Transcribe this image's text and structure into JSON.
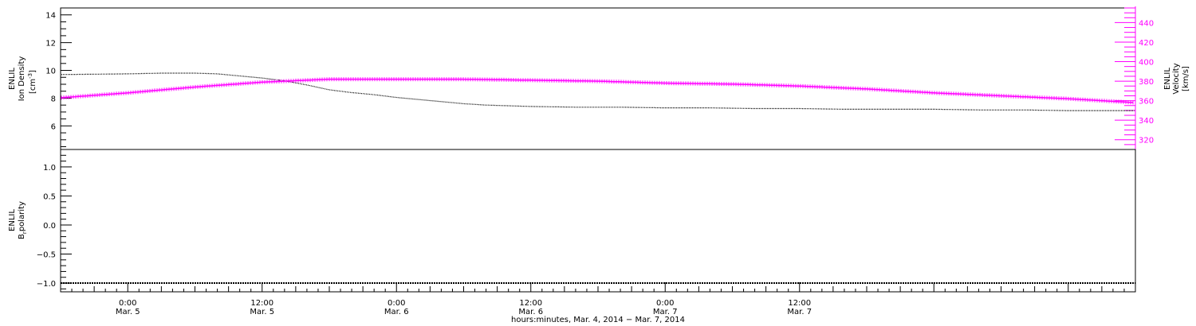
{
  "chart_data": [
    {
      "type": "line",
      "panel": "top",
      "ylabel_left": [
        "ENLIL",
        "Ion Density",
        "[cm",
        "-3",
        "]"
      ],
      "ylabel_right": [
        "ENLIL",
        "Velocity",
        "[km/s]"
      ],
      "ylim_left": [
        4.3,
        14.5
      ],
      "ylim_right": [
        310,
        455
      ],
      "left_ticks": [
        6,
        8,
        10,
        12,
        14
      ],
      "right_ticks": [
        320,
        340,
        360,
        380,
        400,
        420,
        440
      ],
      "left_color": "#000000",
      "right_color": "#ff00ff",
      "series": [
        {
          "axis": "left",
          "color": "#000000",
          "x": [
            -6,
            0,
            3,
            6,
            8,
            10,
            12,
            14,
            16,
            18,
            20,
            22,
            24,
            26,
            28,
            30,
            32,
            34,
            36,
            40,
            44,
            48,
            52,
            56,
            60,
            64,
            68,
            72,
            76,
            80,
            84,
            88,
            90
          ],
          "y": [
            9.7,
            9.75,
            9.8,
            9.8,
            9.75,
            9.6,
            9.45,
            9.25,
            8.95,
            8.6,
            8.4,
            8.25,
            8.05,
            7.9,
            7.75,
            7.6,
            7.5,
            7.45,
            7.4,
            7.35,
            7.35,
            7.3,
            7.3,
            7.25,
            7.25,
            7.2,
            7.2,
            7.2,
            7.15,
            7.15,
            7.1,
            7.1,
            7.1
          ]
        },
        {
          "axis": "right",
          "color": "#ff00ff",
          "x": [
            -6,
            0,
            6,
            12,
            18,
            24,
            30,
            36,
            42,
            48,
            54,
            60,
            66,
            72,
            78,
            84,
            90
          ],
          "y": [
            363,
            368,
            374,
            379,
            382,
            382,
            382,
            381,
            380,
            378,
            377,
            375,
            372,
            368,
            365,
            362,
            358
          ]
        }
      ]
    },
    {
      "type": "line",
      "panel": "bottom",
      "ylabel_left": [
        "ENLIL",
        "B",
        "r",
        "polarity"
      ],
      "ylim": [
        -1.15,
        1.3
      ],
      "ticks": [
        "1.0",
        "0.5",
        "0.0",
        "−0.5",
        "−1.0"
      ],
      "tick_values": [
        1.0,
        0.5,
        0.0,
        -0.5,
        -1.0
      ],
      "series": [
        {
          "color": "#000000",
          "x": [
            -6,
            90
          ],
          "y": [
            -1.0,
            -1.0
          ]
        }
      ]
    }
  ],
  "x_axis": {
    "xlim_hours": [
      -6,
      90
    ],
    "major_ticks": [
      {
        "hour": 0,
        "time": "0:00",
        "date": "Mar. 5"
      },
      {
        "hour": 12,
        "time": "12:00",
        "date": "Mar. 5"
      },
      {
        "hour": 24,
        "time": "0:00",
        "date": "Mar. 6"
      },
      {
        "hour": 36,
        "time": "12:00",
        "date": "Mar. 6"
      },
      {
        "hour": 48,
        "time": "0:00",
        "date": "Mar. 7"
      },
      {
        "hour": 60,
        "time": "12:00",
        "date": "Mar. 7"
      }
    ],
    "title": "hours:minutes, Mar.  4, 2014 − Mar.  7, 2014"
  }
}
